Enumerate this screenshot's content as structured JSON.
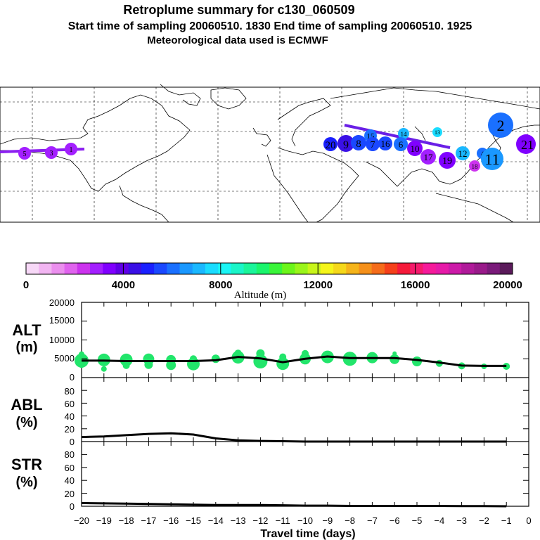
{
  "header": {
    "title": "Retroplume summary for c130_060509",
    "line2": "Start time of sampling 20060510.  1830     End time of sampling 20060510.  1925",
    "line3": "Meteorological data used is ECMWF"
  },
  "colorbar": {
    "title": "Altitude (m)",
    "ticks": [
      "0",
      "4000",
      "8000",
      "12000",
      "16000",
      "20000"
    ],
    "colors": [
      "#f7d8f7",
      "#f2b5f2",
      "#eb8fee",
      "#e063ee",
      "#cc33ee",
      "#a31fff",
      "#8000ff",
      "#6000e6",
      "#3a10e6",
      "#1a20ff",
      "#1a48ff",
      "#1a70ff",
      "#1a98ff",
      "#1ab8ff",
      "#1adcff",
      "#1af5f5",
      "#1af5c8",
      "#1af59a",
      "#1af56c",
      "#3af53a",
      "#6cf51a",
      "#9af51a",
      "#c8f51a",
      "#f5f51a",
      "#f5d81a",
      "#f5b41a",
      "#f5901a",
      "#f56c1a",
      "#f5401a",
      "#f51a3a",
      "#f51a6c",
      "#f51a9a",
      "#e61aa8",
      "#cc1aa8",
      "#b01a9a",
      "#991a8a",
      "#7a1a7a",
      "#5a1a5a"
    ],
    "color_names": [
      "alt-0",
      "alt-1",
      "alt-2",
      "alt-3",
      "alt-4",
      "alt-5",
      "alt-6",
      "alt-7",
      "alt-8",
      "alt-9",
      "alt-10",
      "alt-11",
      "alt-12",
      "alt-13",
      "alt-14",
      "alt-15",
      "alt-16",
      "alt-17",
      "alt-18",
      "alt-19",
      "alt-20",
      "alt-21",
      "alt-22",
      "alt-23",
      "alt-24",
      "alt-25",
      "alt-26",
      "alt-27",
      "alt-28",
      "alt-29",
      "alt-30",
      "alt-31",
      "alt-32",
      "alt-33",
      "alt-34",
      "alt-35",
      "alt-36",
      "alt-37"
    ],
    "range": [
      0,
      20000
    ]
  },
  "map": {
    "markers": [
      "1",
      "2",
      "3",
      "4",
      "5",
      "6",
      "7",
      "8",
      "9",
      "10",
      "11",
      "12",
      "13",
      "14",
      "15",
      "16",
      "17",
      "18",
      "19",
      "20",
      "21"
    ]
  },
  "chart_data": [
    {
      "type": "line",
      "panel": "ALT",
      "ylabel": "ALT\n(m)",
      "ylabel_lines": [
        "ALT",
        "(m)"
      ],
      "ylim": [
        0,
        20000
      ],
      "yticks": [
        "0",
        "5000",
        "10000",
        "15000",
        "20000"
      ],
      "ytick_values": [
        0,
        5000,
        10000,
        15000,
        20000
      ],
      "x": [
        -20,
        -19,
        -18,
        -17,
        -16,
        -15,
        -14,
        -13,
        -12,
        -11,
        -10,
        -9,
        -8,
        -7,
        -6,
        -5,
        -4,
        -3,
        -2,
        -1
      ],
      "values": [
        4500,
        4500,
        4400,
        4400,
        4400,
        4400,
        4600,
        5500,
        5100,
        4100,
        5000,
        5600,
        5200,
        5200,
        5200,
        4700,
        4000,
        3200,
        3100,
        3100
      ],
      "scatter_points": [
        {
          "x": -20,
          "y": 4500,
          "s": 10
        },
        {
          "x": -20,
          "y": 6200,
          "s": 4
        },
        {
          "x": -20,
          "y": 3300,
          "s": 4
        },
        {
          "x": -19,
          "y": 4700,
          "s": 9
        },
        {
          "x": -19,
          "y": 2300,
          "s": 4
        },
        {
          "x": -18,
          "y": 4700,
          "s": 9
        },
        {
          "x": -18,
          "y": 3200,
          "s": 5
        },
        {
          "x": -17,
          "y": 4900,
          "s": 8
        },
        {
          "x": -17,
          "y": 3400,
          "s": 6
        },
        {
          "x": -16,
          "y": 4700,
          "s": 7
        },
        {
          "x": -16,
          "y": 3300,
          "s": 7
        },
        {
          "x": -15,
          "y": 3600,
          "s": 9
        },
        {
          "x": -15,
          "y": 5000,
          "s": 5
        },
        {
          "x": -14,
          "y": 5000,
          "s": 6
        },
        {
          "x": -13,
          "y": 5400,
          "s": 9
        },
        {
          "x": -13,
          "y": 6500,
          "s": 5
        },
        {
          "x": -12,
          "y": 4300,
          "s": 10
        },
        {
          "x": -12,
          "y": 6400,
          "s": 6
        },
        {
          "x": -11,
          "y": 3700,
          "s": 9
        },
        {
          "x": -11,
          "y": 5500,
          "s": 5
        },
        {
          "x": -10,
          "y": 5000,
          "s": 8
        },
        {
          "x": -10,
          "y": 6400,
          "s": 5
        },
        {
          "x": -9,
          "y": 5500,
          "s": 9
        },
        {
          "x": -8,
          "y": 5000,
          "s": 10
        },
        {
          "x": -7,
          "y": 5300,
          "s": 8
        },
        {
          "x": -6,
          "y": 4900,
          "s": 7
        },
        {
          "x": -6,
          "y": 6400,
          "s": 3
        },
        {
          "x": -5,
          "y": 4300,
          "s": 7
        },
        {
          "x": -4,
          "y": 3800,
          "s": 5
        },
        {
          "x": -3,
          "y": 3100,
          "s": 5
        },
        {
          "x": -2,
          "y": 3000,
          "s": 4
        },
        {
          "x": -1,
          "y": 3000,
          "s": 5
        }
      ],
      "scatter_color": "#22e56b"
    },
    {
      "type": "line",
      "panel": "ABL",
      "ylabel": "ABL\n(%)",
      "ylabel_lines": [
        "ABL",
        "(%)"
      ],
      "ylim": [
        0,
        100
      ],
      "yticks": [
        "0",
        "20",
        "40",
        "60",
        "80"
      ],
      "ytick_values": [
        0,
        20,
        40,
        60,
        80
      ],
      "x": [
        -20,
        -19,
        -18,
        -17,
        -16,
        -15,
        -14,
        -13,
        -12,
        -11,
        -10,
        -9,
        -8,
        -7,
        -6,
        -5,
        -4,
        -3,
        -2,
        -1
      ],
      "values": [
        7,
        8,
        10,
        12,
        13,
        11,
        5,
        2,
        1,
        0.5,
        0,
        0,
        0,
        0,
        0,
        0,
        0,
        0,
        0,
        0
      ]
    },
    {
      "type": "line",
      "panel": "STR",
      "ylabel": "STR\n(%)",
      "ylabel_lines": [
        "STR",
        "(%)"
      ],
      "ylim": [
        0,
        100
      ],
      "yticks": [
        "0",
        "20",
        "40",
        "60",
        "80"
      ],
      "ytick_values": [
        0,
        20,
        40,
        60,
        80
      ],
      "x": [
        -20,
        -19,
        -18,
        -17,
        -16,
        -15,
        -14,
        -13,
        -12,
        -11,
        -10,
        -9,
        -8,
        -7,
        -6,
        -5,
        -4,
        -3,
        -2,
        -1
      ],
      "values": [
        5,
        4.5,
        4,
        3.5,
        3,
        2.5,
        2,
        2,
        2,
        1.5,
        1,
        1,
        0.5,
        0.5,
        0.5,
        0.5,
        0.5,
        0.3,
        0.2,
        0
      ]
    }
  ],
  "xaxis": {
    "xlabel": "Travel time (days)",
    "xlim": [
      -20,
      0
    ],
    "ticks": [
      "−20",
      "−19",
      "−18",
      "−17",
      "−16",
      "−15",
      "−14",
      "−13",
      "−12",
      "−11",
      "−10",
      "−9",
      "−8",
      "−7",
      "−6",
      "−5",
      "−4",
      "−3",
      "−2",
      "−1",
      "0"
    ],
    "tick_values": [
      -20,
      -19,
      -18,
      -17,
      -16,
      -15,
      -14,
      -13,
      -12,
      -11,
      -10,
      -9,
      -8,
      -7,
      -6,
      -5,
      -4,
      -3,
      -2,
      -1,
      0
    ]
  }
}
